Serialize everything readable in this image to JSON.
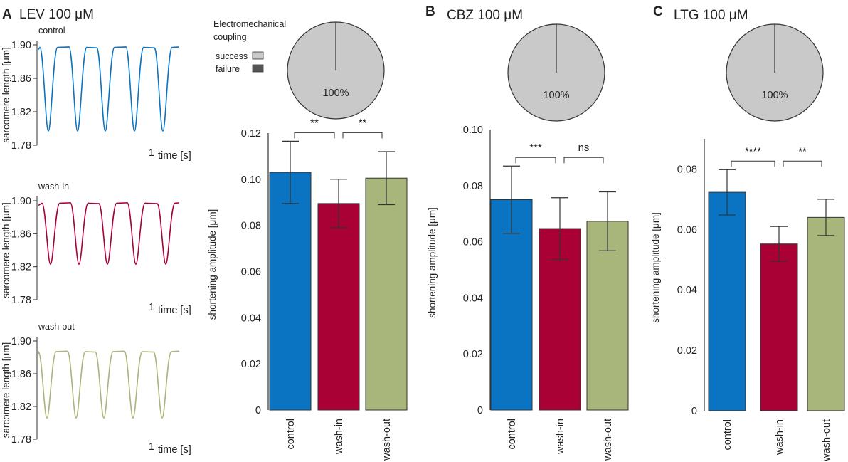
{
  "colors": {
    "control": "#0a74c2",
    "wash_in": "#a90035",
    "wash_out": "#a8b67c",
    "success": "#c9c9c9",
    "failure": "#555555"
  },
  "panels": [
    {
      "letter": "A",
      "title": "LEV 100 μM"
    },
    {
      "letter": "B",
      "title": "CBZ 100 μM"
    },
    {
      "letter": "C",
      "title": "LTG 100 μM"
    }
  ],
  "pie": {
    "title_line1": "Electromechanical",
    "title_line2": "coupling",
    "legend_success": "success",
    "legend_failure": "failure",
    "label": "100%"
  },
  "traces": {
    "ylabel": "sarcomere length [μm]",
    "time_label": "time [s]",
    "scale_value": "1",
    "yticks": [
      "1.90",
      "1.86",
      "1.82",
      "1.78"
    ],
    "conditions": [
      {
        "name": "control",
        "baseline": 1.897,
        "trough": 1.797
      },
      {
        "name": "wash-in",
        "baseline": 1.897,
        "trough": 1.823
      },
      {
        "name": "wash-out",
        "baseline": 1.887,
        "trough": 1.806
      }
    ]
  },
  "chart_data": [
    {
      "type": "bar",
      "title": "LEV 100 μM",
      "categories": [
        "control",
        "wash-in",
        "wash-out"
      ],
      "values": [
        0.103,
        0.0895,
        0.1005
      ],
      "errors": [
        0.0135,
        0.0105,
        0.0115
      ],
      "ylabel": "shortening amplitude [μm]",
      "ylim": [
        0,
        0.12
      ],
      "yticks": [
        "0",
        "0.02",
        "0.04",
        "0.06",
        "0.08",
        "0.10",
        "0.12"
      ],
      "significance": [
        {
          "from": 0,
          "to": 1,
          "label": "**"
        },
        {
          "from": 1,
          "to": 2,
          "label": "**"
        }
      ],
      "pie": {
        "success_pct": 100,
        "failure_pct": 0
      }
    },
    {
      "type": "bar",
      "title": "CBZ 100 μM",
      "categories": [
        "control",
        "wash-in",
        "wash-out"
      ],
      "values": [
        0.075,
        0.0647,
        0.0673
      ],
      "errors": [
        0.012,
        0.011,
        0.0105
      ],
      "ylabel": "shortening amplitude [μm]",
      "ylim": [
        0,
        0.1
      ],
      "yticks": [
        "0",
        "0.02",
        "0.04",
        "0.06",
        "0.08",
        "0.10"
      ],
      "significance": [
        {
          "from": 0,
          "to": 1,
          "label": "***"
        },
        {
          "from": 1,
          "to": 2,
          "label": "ns"
        }
      ],
      "pie": {
        "success_pct": 100,
        "failure_pct": 0
      }
    },
    {
      "type": "bar",
      "title": "LTG 100 μM",
      "categories": [
        "control",
        "wash-in",
        "wash-out"
      ],
      "values": [
        0.0723,
        0.0552,
        0.064
      ],
      "errors": [
        0.0075,
        0.0058,
        0.006
      ],
      "ylabel": "shortening amplitude [μm]",
      "ylim": [
        0,
        0.09
      ],
      "yticks": [
        "0",
        "0.02",
        "0.04",
        "0.06",
        "0.08"
      ],
      "significance": [
        {
          "from": 0,
          "to": 1,
          "label": "****"
        },
        {
          "from": 1,
          "to": 2,
          "label": "**"
        }
      ],
      "pie": {
        "success_pct": 100,
        "failure_pct": 0
      }
    }
  ]
}
